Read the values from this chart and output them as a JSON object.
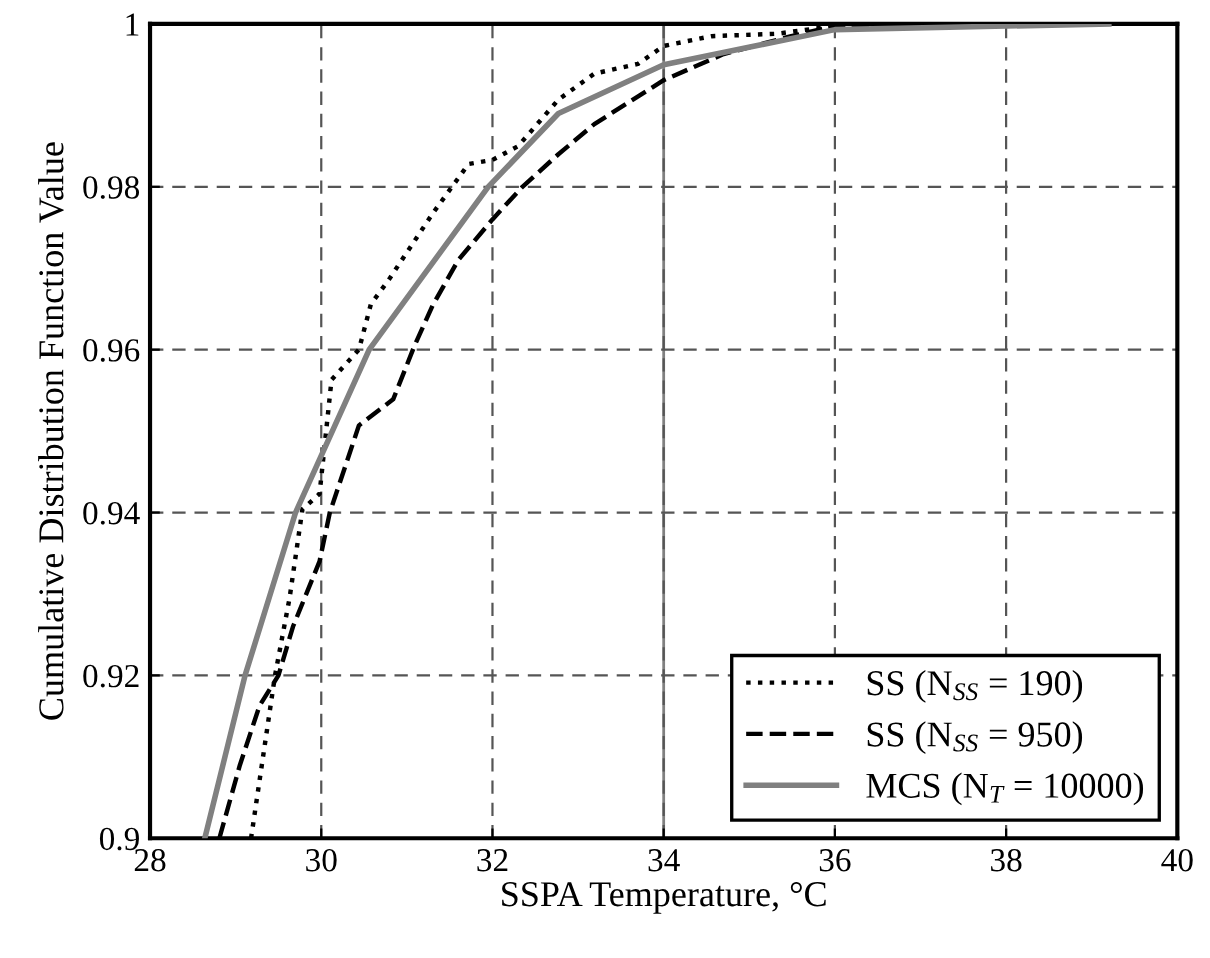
{
  "chart_data": {
    "type": "line",
    "xlabel": "SSPA Temperature, °C",
    "ylabel": "Cumulative Distribution Function Value",
    "xlim": [
      28,
      40
    ],
    "ylim": [
      0.9,
      1
    ],
    "xticks": [
      28,
      30,
      32,
      34,
      36,
      38,
      40
    ],
    "yticks": [
      0.9,
      0.92,
      0.94,
      0.96,
      0.98,
      1
    ],
    "grid": true,
    "legend": "bottom right",
    "ref_lines": [
      {
        "axis": "x",
        "value": 34,
        "color": "#808080",
        "line_style": "solid"
      }
    ],
    "series": [
      {
        "name": "SS (N$_{SS}$ = 190)",
        "color": "#000000",
        "line_style": "dotted",
        "x": [
          29.18,
          29.46,
          29.63,
          29.78,
          29.98,
          30.12,
          30.44,
          30.58,
          30.79,
          31.3,
          31.72,
          32.0,
          32.3,
          32.77,
          33.19,
          33.7,
          34.0,
          34.56,
          35.33,
          36.02,
          36.8
        ],
        "values": [
          0.9,
          0.92,
          0.9295,
          0.9404,
          0.9423,
          0.9563,
          0.96,
          0.9656,
          0.9686,
          0.9767,
          0.9828,
          0.9833,
          0.985,
          0.9907,
          0.9939,
          0.9951,
          0.9973,
          0.9985,
          0.9988,
          0.9998,
          1.0
        ]
      },
      {
        "name": "SS (N$_{SS}$ = 950)",
        "color": "#000000",
        "line_style": "dashed",
        "x": [
          28.81,
          29.05,
          29.28,
          29.5,
          29.67,
          29.98,
          30.1,
          30.44,
          30.84,
          31.09,
          31.3,
          31.6,
          32.0,
          32.35,
          32.77,
          33.19,
          34.0,
          34.7,
          35.49,
          36.02,
          36.9
        ],
        "values": [
          0.9,
          0.909,
          0.9163,
          0.92,
          0.926,
          0.934,
          0.94,
          0.9507,
          0.9539,
          0.9605,
          0.9654,
          0.971,
          0.976,
          0.98,
          0.984,
          0.9877,
          0.9931,
          0.9963,
          0.9985,
          0.9998,
          1.0
        ]
      },
      {
        "name": "MCS (N$_{T}$ = 10000)",
        "color": "#808080",
        "line_style": "solid",
        "x": [
          28.64,
          29.11,
          29.7,
          30.56,
          31.95,
          32.77,
          34.0,
          36.0,
          39.2
        ],
        "values": [
          0.9,
          0.92,
          0.94,
          0.96,
          0.98,
          0.989,
          0.995,
          0.9993,
          1.0
        ]
      }
    ]
  }
}
